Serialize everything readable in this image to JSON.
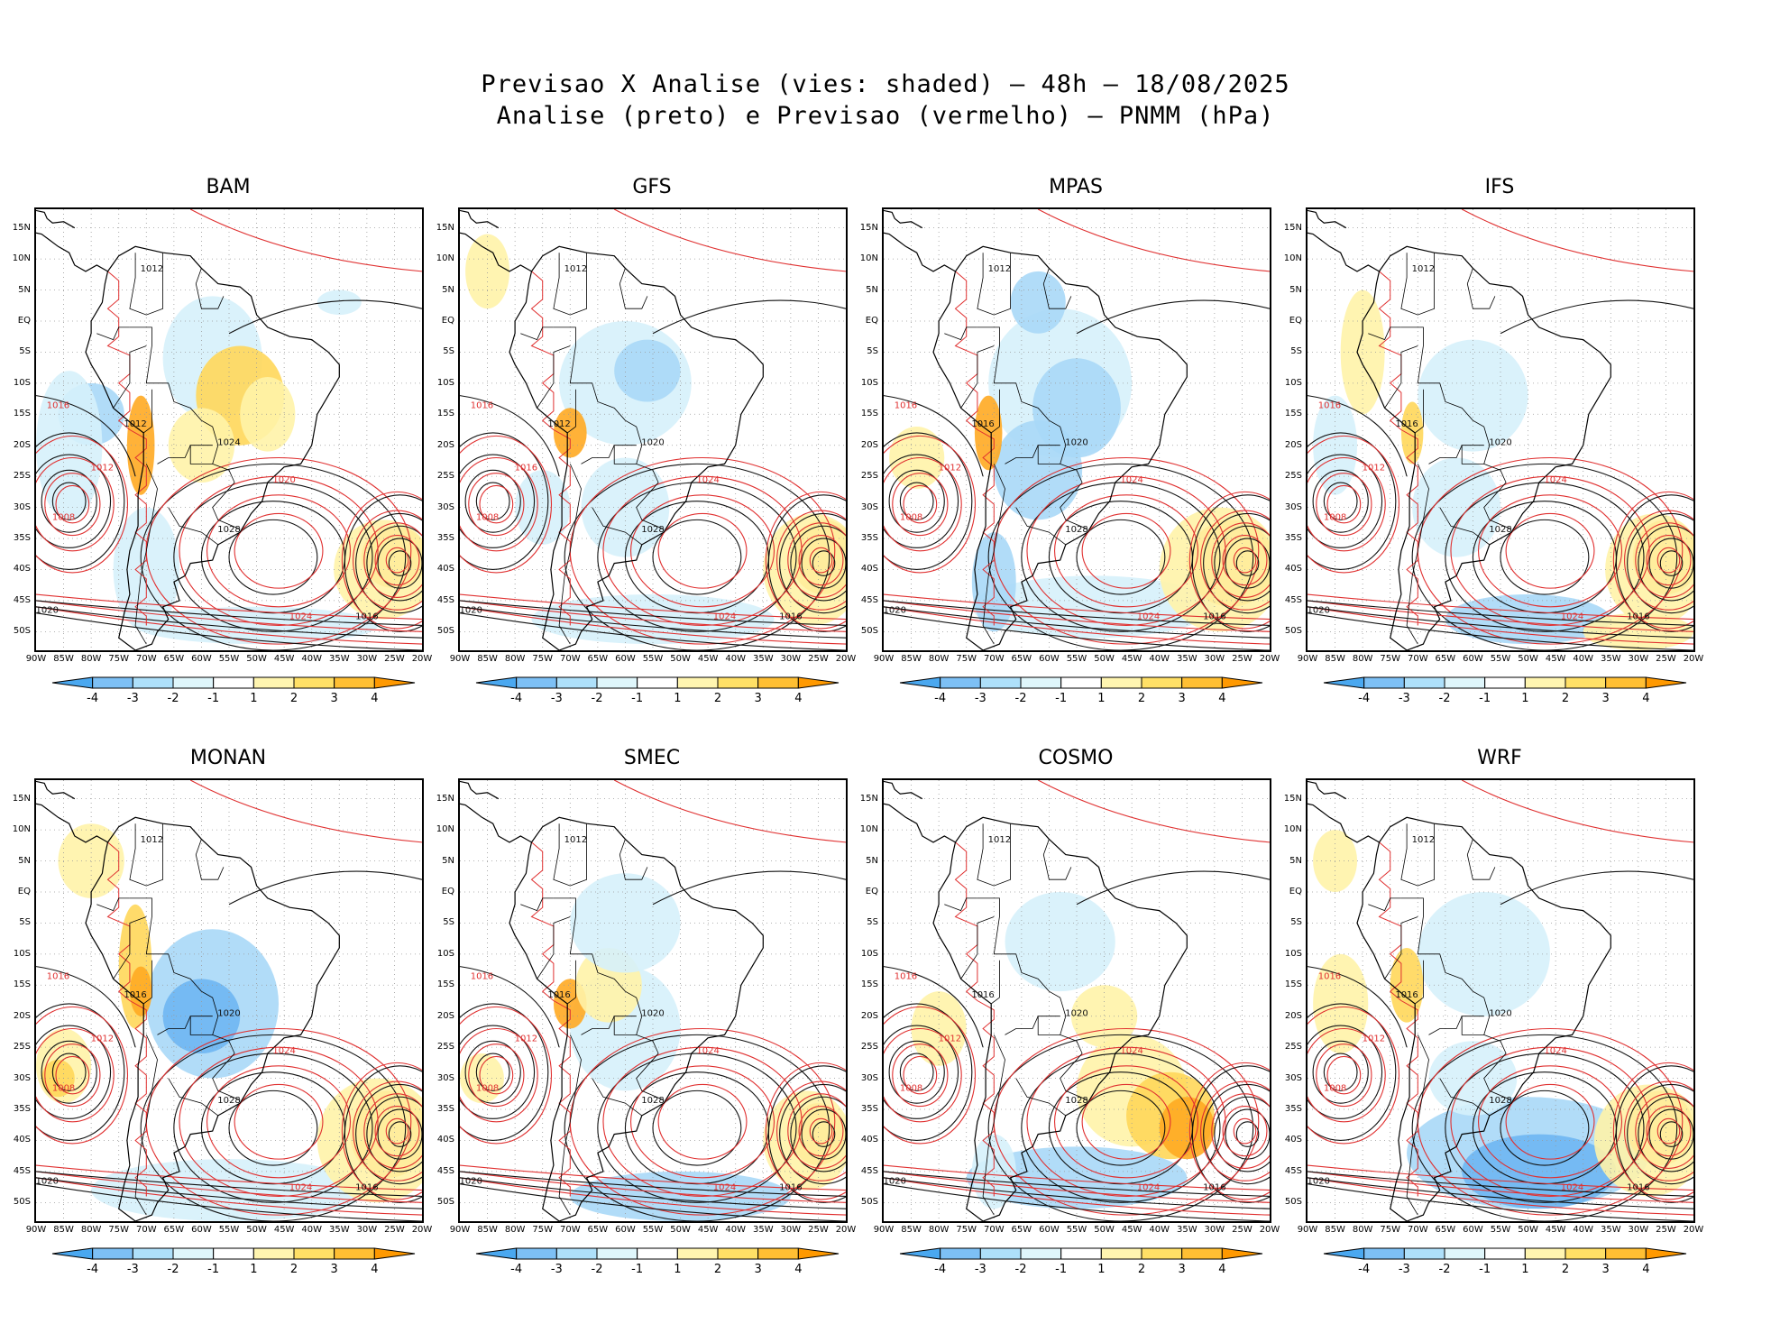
{
  "figure": {
    "title_line1": "Previsao X Analise (vies: shaded) – 48h – 18/08/2025",
    "title_line2": "Analise (preto) e Previsao (vermelho) – PNMM (hPa)"
  },
  "lat_labels": [
    "15N",
    "10N",
    "5N",
    "EQ",
    "5S",
    "10S",
    "15S",
    "20S",
    "25S",
    "30S",
    "35S",
    "40S",
    "45S",
    "50S"
  ],
  "lon_labels": [
    "90W",
    "85W",
    "80W",
    "75W",
    "70W",
    "65W",
    "60W",
    "55W",
    "50W",
    "45W",
    "40W",
    "35W",
    "30W",
    "25W",
    "20W"
  ],
  "colorbar": {
    "labels": [
      "-4",
      "-3",
      "-2",
      "-1",
      "1",
      "2",
      "3",
      "4"
    ],
    "colors": [
      "#4aa8f0",
      "#7dc0f5",
      "#aee0fa",
      "#dff6fb",
      "#ffffff",
      "#fff5b0",
      "#ffe066",
      "#ffbf33",
      "#ff9900"
    ]
  },
  "colors": {
    "analysis": "#111111",
    "forecast": "#e03030",
    "coast": "#000000",
    "neg_strong": "#6fb6f2",
    "neg_mid": "#a9d8f7",
    "neg_weak": "#d6f1fb",
    "pos_weak": "#fff3a8",
    "pos_mid": "#ffd75a",
    "pos_strong": "#ffaa22"
  },
  "panels": [
    {
      "name": "BAM",
      "contour_labels": [
        "1012",
        "1016",
        "1012",
        "1012",
        "1024",
        "1020",
        "1028",
        "1008",
        "1020",
        "1024",
        "1016"
      ]
    },
    {
      "name": "GFS",
      "contour_labels": [
        "1012",
        "1016",
        "1012",
        "1016",
        "1020",
        "1024",
        "1028",
        "1008",
        "1020",
        "1024",
        "1016"
      ]
    },
    {
      "name": "MPAS",
      "contour_labels": [
        "1012",
        "1016",
        "1016",
        "1012",
        "1020",
        "1024",
        "1028",
        "1008",
        "1020",
        "1024",
        "1016"
      ]
    },
    {
      "name": "IFS",
      "contour_labels": [
        "1012",
        "1016",
        "1016",
        "1012",
        "1020",
        "1024",
        "1028",
        "1008",
        "1020",
        "1024",
        "1016"
      ]
    },
    {
      "name": "MONAN",
      "contour_labels": [
        "1012",
        "1016",
        "1016",
        "1012",
        "1020",
        "1024",
        "1028",
        "1008",
        "1020",
        "1024",
        "1016"
      ]
    },
    {
      "name": "SMEC",
      "contour_labels": [
        "1012",
        "1016",
        "1016",
        "1012",
        "1020",
        "1024",
        "1028",
        "1008",
        "1020",
        "1024",
        "1016"
      ]
    },
    {
      "name": "COSMO",
      "contour_labels": [
        "1012",
        "1016",
        "1016",
        "1012",
        "1020",
        "1024",
        "1028",
        "1008",
        "1020",
        "1024",
        "1016"
      ]
    },
    {
      "name": "WRF",
      "contour_labels": [
        "1012",
        "1016",
        "1016",
        "1012",
        "1020",
        "1024",
        "1028",
        "1008",
        "1020",
        "1024",
        "1016"
      ]
    }
  ]
}
